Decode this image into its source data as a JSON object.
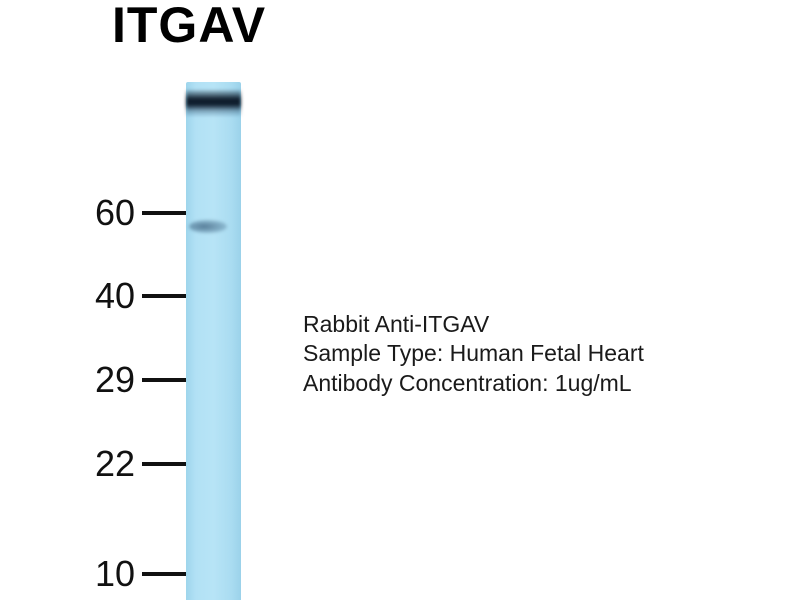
{
  "figure": {
    "title": "ITGAV",
    "type": "western-blot",
    "lane_color": "#aadcf1",
    "band_color": "#0a1828",
    "faint_band_color": "#46708c"
  },
  "markers": [
    {
      "label": "60"
    },
    {
      "label": "40"
    },
    {
      "label": "29"
    },
    {
      "label": "22"
    },
    {
      "label": "10"
    }
  ],
  "annotations": {
    "line1": "Rabbit Anti-ITGAV",
    "line2": "Sample Type: Human Fetal Heart",
    "line3": "Antibody Concentration: 1ug/mL"
  }
}
